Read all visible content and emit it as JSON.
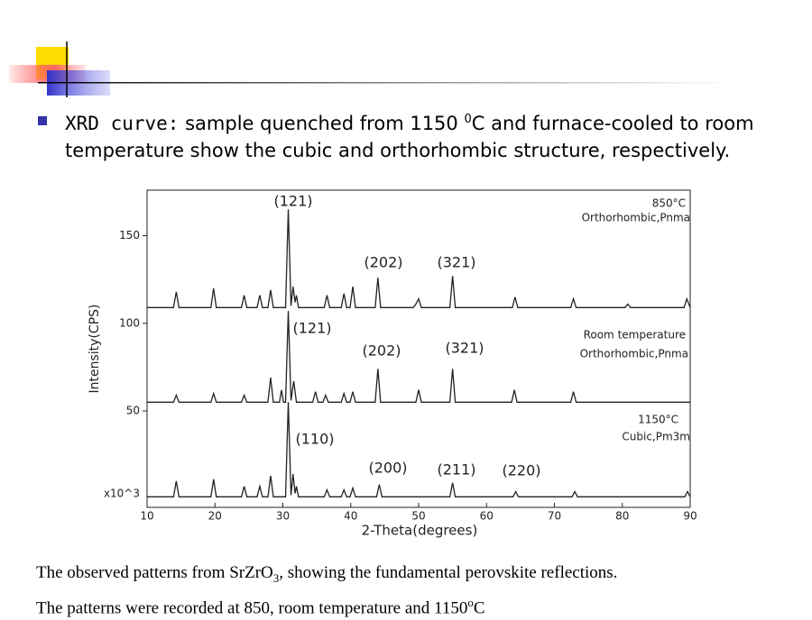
{
  "bullet": {
    "lead": "XRD curve:",
    "text1": " sample quenched from 1150 ",
    "sup": "0",
    "text2": "C and furnace-cooled to room temperature show the cubic and orthorhombic structure, respectively."
  },
  "chart_data": {
    "type": "line",
    "xlabel": "2-Theta(degrees)",
    "ylabel": "Intensity(CPS)",
    "yunit": "x10^3",
    "xlim": [
      10,
      90
    ],
    "xticks": [
      10,
      20,
      30,
      40,
      50,
      60,
      70,
      80,
      90
    ],
    "ylim": [
      -5,
      176
    ],
    "yticks": [
      50,
      100,
      150
    ],
    "color": "#222222",
    "series": [
      {
        "name": "850°C",
        "structure": "Orthorhombic,Pnma",
        "x": [
          10,
          13.9,
          14.3,
          14.7,
          19.4,
          19.8,
          20.2,
          23.9,
          24.3,
          24.7,
          26.2,
          26.6,
          27,
          27.8,
          28.2,
          28.6,
          30.4,
          30.8,
          31.2,
          31.5,
          31.8,
          32,
          32.3,
          36.1,
          36.5,
          36.9,
          38.6,
          39,
          39.4,
          39.9,
          40.3,
          40.7,
          43.6,
          44,
          44.4,
          49.2,
          49.6,
          50,
          50.4,
          54.6,
          55,
          55.4,
          63.8,
          64.2,
          64.6,
          72.4,
          72.8,
          73.2,
          80.4,
          80.8,
          81.2,
          89.1,
          89.5,
          90
        ],
        "values": [
          109,
          109,
          118,
          109,
          109,
          120,
          109,
          109,
          116,
          109,
          109,
          116,
          109,
          109,
          119,
          109,
          109,
          165,
          110,
          121,
          112,
          116,
          109,
          109,
          116,
          109,
          109,
          117,
          109,
          109,
          121,
          109,
          109,
          126,
          109,
          109,
          111,
          114,
          109,
          109,
          127,
          109,
          109,
          115,
          109,
          109,
          114,
          109,
          109,
          111,
          109,
          109,
          114,
          109
        ]
      },
      {
        "name": "Room temperature",
        "structure": "Orthorhombic,Pnma",
        "x": [
          10,
          13.9,
          14.3,
          14.7,
          19.4,
          19.8,
          20.2,
          23.9,
          24.3,
          24.7,
          27.8,
          28.2,
          28.6,
          29.5,
          29.8,
          30.1,
          30.4,
          30.8,
          31.2,
          31.6,
          32,
          34.4,
          34.8,
          35.2,
          35.9,
          36.3,
          36.7,
          38.6,
          39,
          39.4,
          39.9,
          40.3,
          40.7,
          43.6,
          44,
          44.4,
          49.6,
          50,
          50.4,
          54.6,
          55,
          55.4,
          63.7,
          64.1,
          64.5,
          72.4,
          72.8,
          73.2,
          90
        ],
        "values": [
          55,
          55,
          59,
          55,
          55,
          60,
          55,
          55,
          59,
          55,
          55,
          69,
          55,
          55,
          62,
          55,
          55,
          107,
          56,
          67,
          55,
          55,
          61,
          55,
          55,
          59,
          55,
          55,
          60,
          55,
          55,
          61,
          55,
          55,
          74,
          55,
          55,
          62,
          55,
          55,
          74,
          55,
          55,
          62,
          55,
          55,
          61,
          55,
          55
        ]
      },
      {
        "name": "1150°C",
        "structure": "Cubic,Pm3m",
        "x": [
          10,
          13.9,
          14.3,
          14.7,
          19.4,
          19.8,
          20.2,
          23.9,
          24.3,
          24.7,
          26.2,
          26.6,
          27,
          27.8,
          28.2,
          28.6,
          30.4,
          30.8,
          31.2,
          31.5,
          31.8,
          32,
          32.3,
          36.1,
          36.5,
          36.9,
          38.6,
          39,
          39.4,
          39.9,
          40.3,
          40.7,
          43.8,
          44.2,
          44.6,
          54.6,
          55,
          55.4,
          63.9,
          64.3,
          64.7,
          72.6,
          73,
          73.4,
          89.2,
          89.6,
          90
        ],
        "values": [
          1,
          1,
          10,
          1,
          1,
          11,
          1,
          1,
          7,
          1,
          1,
          7,
          1,
          1,
          13,
          1,
          1,
          55,
          2,
          14,
          3,
          7,
          1,
          1,
          5,
          1,
          1,
          5,
          1,
          1,
          6,
          1,
          1,
          8,
          1,
          1,
          9,
          1,
          1,
          4,
          1,
          1,
          4,
          1,
          1,
          4,
          1
        ]
      }
    ],
    "annotations": [
      "(121)",
      "(202)",
      "(321)",
      "(121)",
      "(202)",
      "(321)",
      "(110)",
      "(200)",
      "(211)",
      "(220)"
    ]
  },
  "caption": {
    "line1a": "The observed patterns from SrZrO",
    "line1sub": "3",
    "line1b": ", showing the fundamental perovskite reflections.",
    "line2a": "The patterns were recorded at 850, room temperature and 1150",
    "line2sup": "o",
    "line2b": "C"
  }
}
